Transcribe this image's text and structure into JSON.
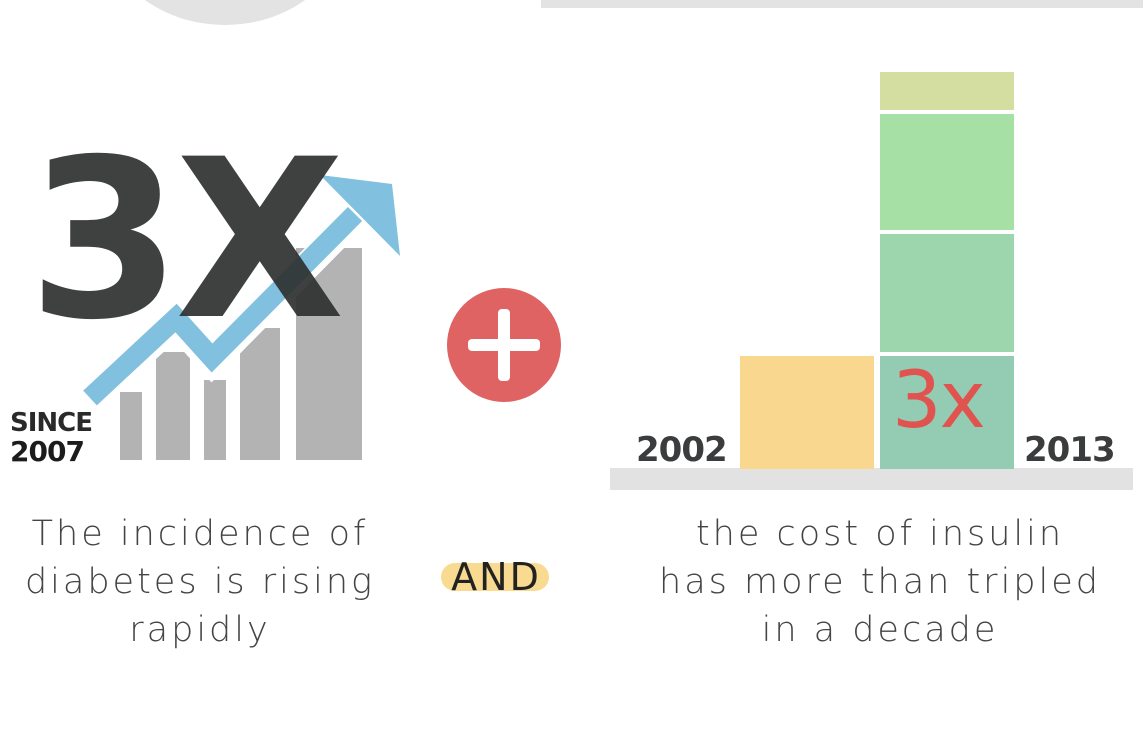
{
  "left_panel": {
    "multiplier": "3X",
    "since_label": "SINCE",
    "since_year": "2007",
    "caption_lines": [
      "The incidence of",
      "diabetes is rising",
      "rapidly"
    ]
  },
  "connector": {
    "plus_icon": "plus-icon",
    "and_label": "AND"
  },
  "right_panel": {
    "multiplier": "3x",
    "caption_lines": [
      "the cost of insulin",
      "has more than tripled",
      "in a decade"
    ]
  },
  "chart_data": {
    "type": "bar",
    "categories": [
      "2002",
      "2013"
    ],
    "values": [
      1,
      3
    ],
    "annotation": "3x"
  },
  "colors": {
    "accent_red": "#df6362",
    "bar_2002": "#f9d78f",
    "bar_2013": "#93cbb3",
    "trend_arrow": "#6fb7db"
  }
}
